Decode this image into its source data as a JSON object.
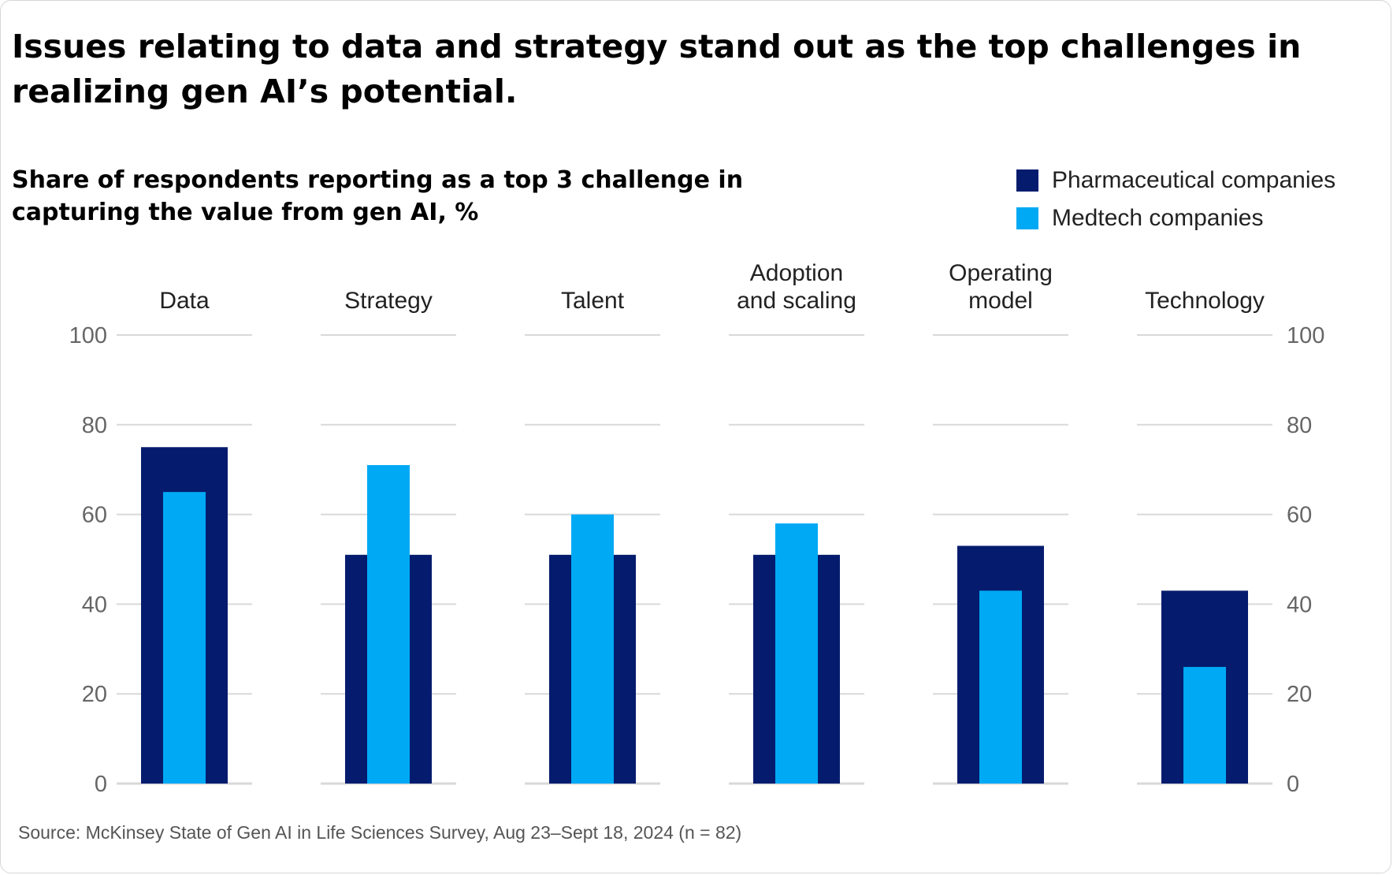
{
  "title": "Issues relating to data and strategy stand out as the top challenges in realizing gen AI’s potential.",
  "subtitle": "Share of respondents reporting as a top 3 challenge in capturing the value from gen AI, %",
  "source": "Source: McKinsey State of Gen AI in Life Sciences Survey, Aug 23–Sept 18, 2024 (n = 82)",
  "colors": {
    "pharma": "#051c6e",
    "medtech": "#00a9f4",
    "grid": "#d9d9d9"
  },
  "chart_data": {
    "type": "bar",
    "title": "Issues relating to data and strategy stand out as the top challenges in realizing gen AI’s potential.",
    "subtitle": "Share of respondents reporting as a top 3 challenge in capturing the value from gen AI, %",
    "categories": [
      [
        "Data"
      ],
      [
        "Strategy"
      ],
      [
        "Talent"
      ],
      [
        "Adoption",
        "and scaling"
      ],
      [
        "Operating",
        "model"
      ],
      [
        "Technology"
      ]
    ],
    "series": [
      {
        "name": "Pharmaceutical companies",
        "values": [
          75,
          51,
          51,
          51,
          53,
          43
        ]
      },
      {
        "name": "Medtech companies",
        "values": [
          65,
          71,
          60,
          58,
          43,
          26
        ]
      }
    ],
    "ylim": [
      0,
      100
    ],
    "yticks": [
      0,
      20,
      40,
      60,
      80,
      100
    ],
    "grid": true,
    "legend_position": "top-right",
    "xlabel": "",
    "ylabel": ""
  }
}
